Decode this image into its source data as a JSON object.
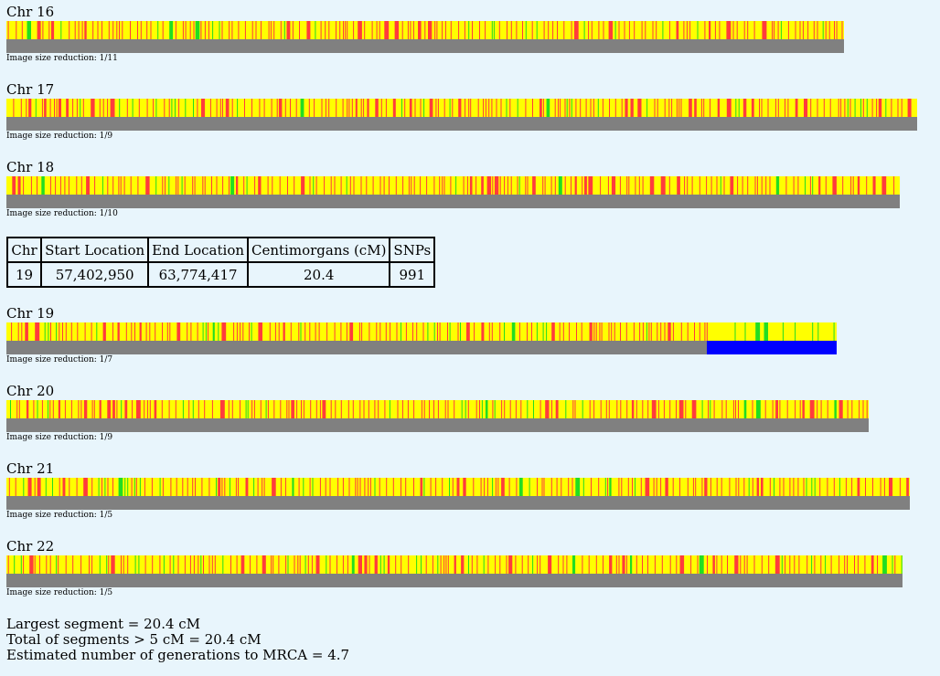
{
  "chromosomes": [
    {
      "title": "Chr 16",
      "note": "Image size reduction: 1/11",
      "segment": null
    },
    {
      "title": "Chr 17",
      "note": "Image size reduction: 1/9",
      "segment": null
    },
    {
      "title": "Chr 18",
      "note": "Image size reduction: 1/10",
      "segment": null
    },
    {
      "title": "Chr 19",
      "note": "Image size reduction: 1/7",
      "segment": {
        "start_fraction": 0.844,
        "end_fraction": 1.0
      }
    },
    {
      "title": "Chr 20",
      "note": "Image size reduction: 1/9",
      "segment": null
    },
    {
      "title": "Chr 21",
      "note": "Image size reduction: 1/5",
      "segment": null
    },
    {
      "title": "Chr 22",
      "note": "Image size reduction: 1/5",
      "segment": null
    }
  ],
  "colors": {
    "background": "#e8f5fc",
    "no_match": "#ffff00",
    "half_match_red": "#ff3c3c",
    "full_match_green": "#22dd22",
    "track": "#808080",
    "segment": "#0000ff"
  },
  "segment_table": {
    "headers": [
      "Chr",
      "Start Location",
      "End Location",
      "Centimorgans (cM)",
      "SNPs"
    ],
    "rows": [
      [
        "19",
        "57,402,950",
        "63,774,417",
        "20.4",
        "991"
      ]
    ]
  },
  "summary": {
    "largest": "Largest segment = 20.4 cM",
    "total": "Total of segments > 5 cM = 20.4 cM",
    "generations": "Estimated number of generations to MRCA = 4.7"
  }
}
